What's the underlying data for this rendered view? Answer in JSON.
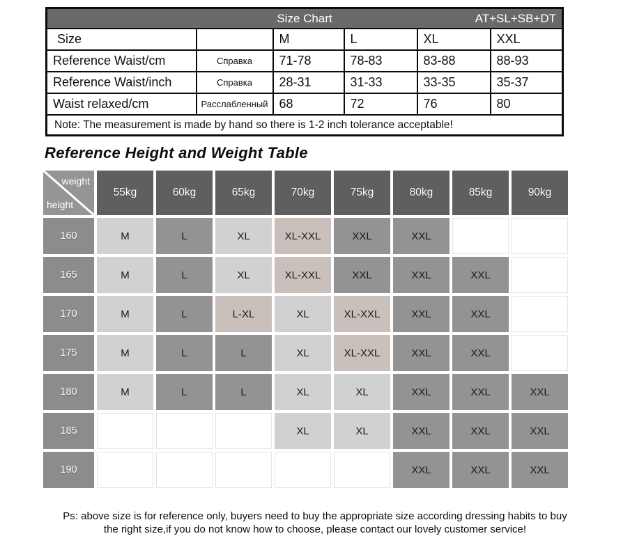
{
  "colors": {
    "header_bar_bg": "#696969",
    "grid_header_bg": "#5f5f5f",
    "grid_corner_bg": "#959595",
    "height_label_bg": "#8c8c8c",
    "cell_light": "#d1d1d1",
    "cell_mid": "#939393",
    "cell_pink": "#c9c0bc",
    "border": "#0b0b0b"
  },
  "size_chart": {
    "title": "Size Chart",
    "code": "AT+SL+SB+DT",
    "size_row": {
      "label": "Size",
      "ru": "",
      "values": [
        "M",
        "L",
        "XL",
        "XXL"
      ]
    },
    "rows": [
      {
        "label": "Reference Waist/cm",
        "ru": "Справка",
        "values": [
          "71-78",
          "78-83",
          "83-88",
          "88-93"
        ]
      },
      {
        "label": "Reference Waist/inch",
        "ru": "Справка",
        "values": [
          "28-31",
          "31-33",
          "33-35",
          "35-37"
        ]
      },
      {
        "label": "Waist relaxed/cm",
        "ru": "Расслабленный",
        "values": [
          "68",
          "72",
          "76",
          "80"
        ]
      }
    ],
    "note": "Note: The measurement is made by hand so there is 1-2 inch tolerance acceptable!"
  },
  "heading": "Reference Height and Weight Table",
  "matrix": {
    "corner": {
      "top": "weight",
      "bottom": "height"
    },
    "weights": [
      "55kg",
      "60kg",
      "65kg",
      "70kg",
      "75kg",
      "80kg",
      "85kg",
      "90kg"
    ],
    "rows": [
      {
        "height": "160",
        "cells": [
          {
            "label": "M",
            "style": "light"
          },
          {
            "label": "L",
            "style": "mid"
          },
          {
            "label": "XL",
            "style": "light"
          },
          {
            "label": "XL-XXL",
            "style": "pink"
          },
          {
            "label": "XXL",
            "style": "mid"
          },
          {
            "label": "XXL",
            "style": "mid"
          },
          {
            "label": "",
            "style": "empty"
          },
          {
            "label": "",
            "style": "empty"
          }
        ]
      },
      {
        "height": "165",
        "cells": [
          {
            "label": "M",
            "style": "light"
          },
          {
            "label": "L",
            "style": "mid"
          },
          {
            "label": "XL",
            "style": "light"
          },
          {
            "label": "XL-XXL",
            "style": "pink"
          },
          {
            "label": "XXL",
            "style": "mid"
          },
          {
            "label": "XXL",
            "style": "mid"
          },
          {
            "label": "XXL",
            "style": "mid"
          },
          {
            "label": "",
            "style": "empty"
          }
        ]
      },
      {
        "height": "170",
        "cells": [
          {
            "label": "M",
            "style": "light"
          },
          {
            "label": "L",
            "style": "mid"
          },
          {
            "label": "L-XL",
            "style": "pink"
          },
          {
            "label": "XL",
            "style": "light"
          },
          {
            "label": "XL-XXL",
            "style": "pink"
          },
          {
            "label": "XXL",
            "style": "mid"
          },
          {
            "label": "XXL",
            "style": "mid"
          },
          {
            "label": "",
            "style": "empty"
          }
        ]
      },
      {
        "height": "175",
        "cells": [
          {
            "label": "M",
            "style": "light"
          },
          {
            "label": "L",
            "style": "mid"
          },
          {
            "label": "L",
            "style": "mid"
          },
          {
            "label": "XL",
            "style": "light"
          },
          {
            "label": "XL-XXL",
            "style": "pink"
          },
          {
            "label": "XXL",
            "style": "mid"
          },
          {
            "label": "XXL",
            "style": "mid"
          },
          {
            "label": "",
            "style": "empty"
          }
        ]
      },
      {
        "height": "180",
        "cells": [
          {
            "label": "M",
            "style": "light"
          },
          {
            "label": "L",
            "style": "mid"
          },
          {
            "label": "L",
            "style": "mid"
          },
          {
            "label": "XL",
            "style": "light"
          },
          {
            "label": "XL",
            "style": "light"
          },
          {
            "label": "XXL",
            "style": "mid"
          },
          {
            "label": "XXL",
            "style": "mid"
          },
          {
            "label": "XXL",
            "style": "mid"
          }
        ]
      },
      {
        "height": "185",
        "cells": [
          {
            "label": "",
            "style": "empty"
          },
          {
            "label": "",
            "style": "empty"
          },
          {
            "label": "",
            "style": "empty"
          },
          {
            "label": "XL",
            "style": "light"
          },
          {
            "label": "XL",
            "style": "light"
          },
          {
            "label": "XXL",
            "style": "mid"
          },
          {
            "label": "XXL",
            "style": "mid"
          },
          {
            "label": "XXL",
            "style": "mid"
          }
        ]
      },
      {
        "height": "190",
        "cells": [
          {
            "label": "",
            "style": "empty"
          },
          {
            "label": "",
            "style": "empty"
          },
          {
            "label": "",
            "style": "empty"
          },
          {
            "label": "",
            "style": "empty"
          },
          {
            "label": "",
            "style": "empty"
          },
          {
            "label": "XXL",
            "style": "mid"
          },
          {
            "label": "XXL",
            "style": "mid"
          },
          {
            "label": "XXL",
            "style": "mid"
          }
        ]
      }
    ]
  },
  "footer": {
    "line1": "Ps: above size is for reference only, buyers need to buy the appropriate size according dressing habits to buy",
    "line2": "the right size,if you do not know how to choose, please contact our lovely customer service!"
  }
}
